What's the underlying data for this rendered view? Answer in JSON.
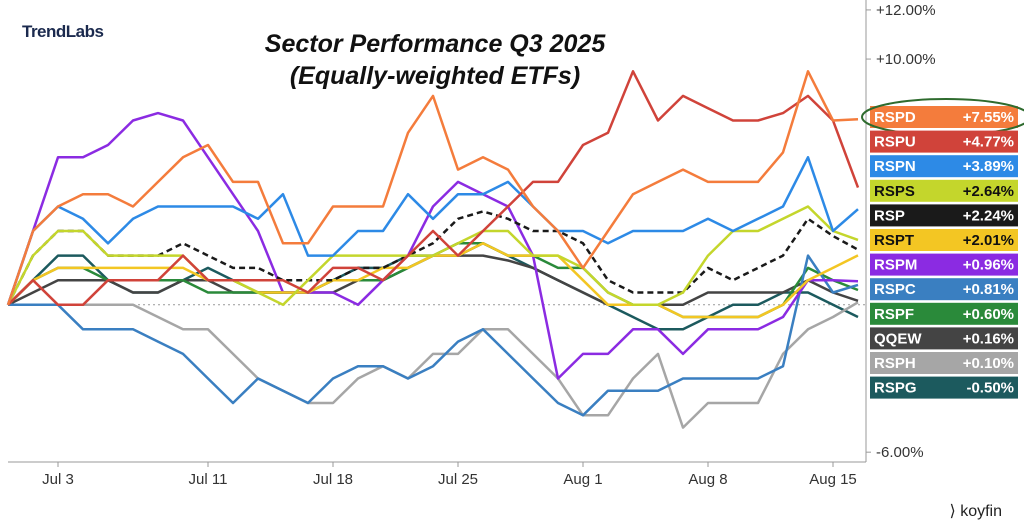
{
  "brand": {
    "logo_text": "TrendLabs",
    "footer": "koyfin"
  },
  "chart_data": {
    "type": "line",
    "title": "Sector Performance Q3 2025",
    "subtitle": "(Equally-weighted ETFs)",
    "x_tick_labels": [
      "Jul 3",
      "Jul 11",
      "Jul 18",
      "Jul 25",
      "Aug 1",
      "Aug 8",
      "Aug 15"
    ],
    "x_tick_index": [
      2,
      8,
      13,
      18,
      23,
      28,
      33
    ],
    "y_axis_labels": [
      "+12.00%",
      "+10.00%",
      "-6.00%"
    ],
    "y_axis_values": [
      12,
      10,
      -6
    ],
    "ylim": [
      -6.4,
      12.2
    ],
    "num_points": 35,
    "highlight_series": "RSPD",
    "series": [
      {
        "name": "RSPD",
        "label": "+7.55%",
        "color": "#f47c3c",
        "dash": false,
        "values": [
          0,
          3,
          4,
          4.5,
          4.5,
          4,
          5,
          6,
          6.5,
          5,
          5,
          2.5,
          2.5,
          4,
          4,
          4,
          7,
          8.5,
          5.5,
          6,
          5.5,
          4,
          3,
          1.5,
          3,
          4.5,
          5,
          5.5,
          5,
          5,
          5,
          6.2,
          9.5,
          7.5,
          7.55
        ]
      },
      {
        "name": "RSPU",
        "label": "+4.77%",
        "color": "#d0433a",
        "dash": false,
        "values": [
          0,
          1,
          0,
          0,
          1,
          1,
          1,
          2,
          1,
          1,
          1,
          1,
          0.5,
          1.5,
          1.5,
          1,
          2,
          3,
          2,
          3,
          4,
          5,
          5,
          6.5,
          7,
          9.5,
          7.5,
          8.5,
          8,
          7.5,
          7.5,
          7.8,
          8.5,
          7.5,
          4.77
        ]
      },
      {
        "name": "RSPN",
        "label": "+3.89%",
        "color": "#2d8ae6",
        "dash": false,
        "values": [
          0,
          3,
          4,
          3.5,
          2.5,
          3.5,
          4,
          4,
          4,
          4,
          3.5,
          4.5,
          2,
          2,
          3,
          3,
          4.5,
          3.5,
          4.5,
          4.5,
          5,
          4,
          3,
          3,
          2.5,
          3,
          3,
          3,
          3.5,
          3,
          3.5,
          4,
          6,
          3,
          3.89
        ]
      },
      {
        "name": "RSPS",
        "label": "+2.64%",
        "color": "#c4d62c",
        "dash": false,
        "values": [
          0,
          2,
          3,
          3,
          2,
          2,
          2,
          2,
          1,
          1,
          0.5,
          0,
          1,
          2,
          2,
          2,
          2,
          2,
          2.5,
          3,
          3,
          2,
          2,
          1.5,
          0.5,
          0,
          0,
          0.5,
          2,
          3,
          3,
          3.5,
          4,
          3,
          2.64
        ]
      },
      {
        "name": "RSP",
        "label": "+2.24%",
        "color": "#1a1a1a",
        "dash": true,
        "values": [
          0,
          2,
          3,
          3,
          2,
          2,
          2,
          2.5,
          2,
          1.5,
          1.5,
          1,
          1,
          1,
          1.5,
          1.5,
          2,
          2.5,
          3.5,
          3.8,
          3.5,
          3,
          3,
          2.5,
          1,
          0.5,
          0.5,
          0.5,
          1.5,
          1,
          1.5,
          2,
          3.5,
          2.8,
          2.24
        ]
      },
      {
        "name": "RSPT",
        "label": "+2.01%",
        "color": "#f3c623",
        "dash": false,
        "values": [
          0,
          1,
          1.5,
          1.5,
          1.5,
          1.5,
          1.5,
          1.5,
          1,
          1,
          0.5,
          0.5,
          0.5,
          1,
          1,
          1.5,
          1.5,
          2,
          2,
          2.5,
          2,
          2,
          2,
          1,
          0,
          0,
          0,
          -0.5,
          -0.5,
          -0.5,
          -0.5,
          0,
          1,
          1.5,
          2.01
        ]
      },
      {
        "name": "RSPM",
        "label": "+0.96%",
        "color": "#8b2be2",
        "dash": false,
        "values": [
          0,
          3,
          6,
          6,
          6.5,
          7.5,
          7.8,
          7.5,
          6,
          4.5,
          3,
          0.5,
          0.5,
          0.5,
          0,
          1,
          2,
          4,
          5,
          4.5,
          4,
          2,
          -3,
          -2,
          -2,
          -1,
          -1,
          -2,
          -1,
          -1,
          -1,
          -0.5,
          1,
          1,
          0.96
        ]
      },
      {
        "name": "RSPC",
        "label": "+0.81%",
        "color": "#3a7fc1",
        "dash": false,
        "values": [
          0,
          0,
          0,
          -1,
          -1,
          -1,
          -1.5,
          -2,
          -3,
          -4,
          -3,
          -3.5,
          -4,
          -3,
          -2.5,
          -2.5,
          -3,
          -2.5,
          -1.5,
          -1,
          -2,
          -3,
          -4,
          -4.5,
          -3.5,
          -3.5,
          -3.5,
          -3,
          -3,
          -3,
          -3,
          -2.5,
          2,
          0.5,
          0.81
        ]
      },
      {
        "name": "RSPF",
        "label": "+0.60%",
        "color": "#2a8a3a",
        "dash": false,
        "values": [
          0,
          1,
          1.5,
          1.5,
          1,
          1,
          1,
          1,
          0.5,
          0.5,
          0.5,
          0.5,
          0.5,
          1,
          1,
          1,
          1.5,
          2,
          2.5,
          2.5,
          2,
          2,
          1.5,
          1.5,
          0.5,
          0,
          0,
          -0.5,
          -0.5,
          -0.5,
          -0.5,
          0,
          1.5,
          1,
          0.6
        ]
      },
      {
        "name": "QQEW",
        "label": "+0.16%",
        "color": "#444444",
        "dash": false,
        "values": [
          0,
          0.5,
          1,
          1,
          1,
          0.5,
          0.5,
          1,
          1,
          0.5,
          0.5,
          0.5,
          0.5,
          0.5,
          1,
          1,
          1.5,
          2,
          2,
          2,
          1.8,
          1.5,
          1,
          0.5,
          0,
          0,
          0,
          0,
          0.5,
          0.5,
          0.5,
          0.5,
          1,
          0.5,
          0.16
        ]
      },
      {
        "name": "RSPH",
        "label": "+0.10%",
        "color": "#a6a6a6",
        "dash": false,
        "values": [
          0,
          0,
          0,
          0,
          0,
          0,
          -0.5,
          -1,
          -1,
          -2,
          -3,
          -3.5,
          -4,
          -4,
          -3,
          -2.5,
          -3,
          -2,
          -2,
          -1,
          -1,
          -2,
          -3,
          -4.5,
          -4.5,
          -3,
          -2,
          -5,
          -4,
          -4,
          -4,
          -2,
          -1,
          -0.5,
          0.1
        ]
      },
      {
        "name": "RSPG",
        "label": "-0.50%",
        "color": "#1c5a5e",
        "dash": false,
        "values": [
          0,
          1,
          2,
          2,
          1,
          0.5,
          0.5,
          1,
          1.5,
          1,
          0.5,
          0.5,
          0.5,
          1,
          1.5,
          1.5,
          2,
          2,
          2,
          2.5,
          2,
          1.5,
          1,
          0.5,
          0,
          -0.5,
          -1,
          -1,
          -0.5,
          0,
          0,
          0.5,
          0.5,
          0,
          -0.5
        ]
      }
    ]
  }
}
